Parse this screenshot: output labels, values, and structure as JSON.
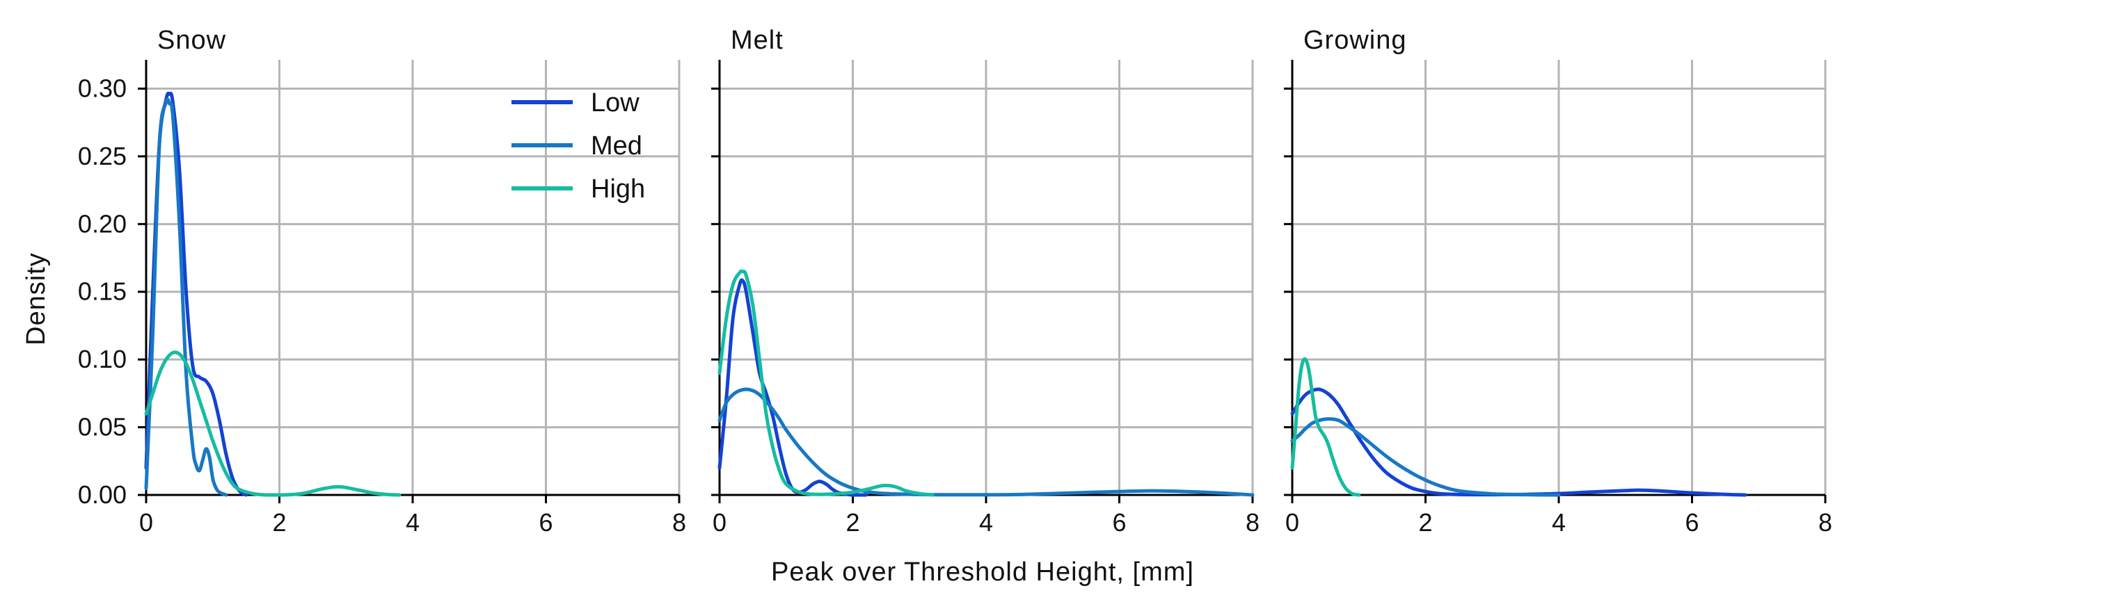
{
  "chart_data": {
    "type": "line",
    "subtype": "kde-density",
    "ylabel": "Density",
    "xlabel": "Peak over Threshold Height, [mm]",
    "xlim": [
      0,
      8
    ],
    "ylim": [
      0,
      0.31
    ],
    "xticks": [
      "0",
      "2",
      "4",
      "6",
      "8"
    ],
    "yticks": [
      "0.00",
      "0.05",
      "0.10",
      "0.15",
      "0.20",
      "0.25",
      "0.30"
    ],
    "grid": true,
    "legend": {
      "location": "top-right of first panel",
      "entries": [
        "Low",
        "Med",
        "High"
      ]
    },
    "colors": {
      "Low": "#1442d2",
      "Med": "#1878c4",
      "High": "#16bca0"
    },
    "panels": [
      {
        "title": "Snow",
        "series": [
          {
            "name": "Low",
            "x": [
              0,
              0.1,
              0.2,
              0.3,
              0.35,
              0.4,
              0.5,
              0.6,
              0.7,
              0.8,
              0.9,
              1.0,
              1.1,
              1.2,
              1.3,
              1.4,
              1.5
            ],
            "y": [
              0.02,
              0.15,
              0.26,
              0.292,
              0.296,
              0.29,
              0.24,
              0.15,
              0.095,
              0.087,
              0.084,
              0.075,
              0.055,
              0.03,
              0.012,
              0.003,
              0.0
            ]
          },
          {
            "name": "Med",
            "x": [
              0,
              0.1,
              0.2,
              0.3,
              0.35,
              0.4,
              0.5,
              0.6,
              0.7,
              0.75,
              0.8,
              0.85,
              0.9,
              0.95,
              1.0,
              1.05,
              1.1,
              1.2
            ],
            "y": [
              0.005,
              0.12,
              0.26,
              0.29,
              0.289,
              0.28,
              0.2,
              0.09,
              0.035,
              0.022,
              0.018,
              0.026,
              0.034,
              0.028,
              0.012,
              0.005,
              0.002,
              0.0
            ]
          },
          {
            "name": "High",
            "x": [
              0,
              0.1,
              0.2,
              0.3,
              0.4,
              0.5,
              0.6,
              0.7,
              0.8,
              0.9,
              1.0,
              1.1,
              1.2,
              1.3,
              1.4,
              1.6,
              1.8,
              2.0,
              2.2,
              2.4,
              2.6,
              2.8,
              2.9,
              3.0,
              3.2,
              3.4,
              3.6,
              3.8
            ],
            "y": [
              0.06,
              0.075,
              0.09,
              0.1,
              0.105,
              0.104,
              0.097,
              0.085,
              0.07,
              0.055,
              0.04,
              0.027,
              0.016,
              0.008,
              0.004,
              0.001,
              0.0,
              0.0,
              0.0003,
              0.0015,
              0.004,
              0.0058,
              0.006,
              0.0055,
              0.0035,
              0.0015,
              0.0004,
              0.0
            ]
          }
        ]
      },
      {
        "title": "Melt",
        "series": [
          {
            "name": "Low",
            "x": [
              0,
              0.1,
              0.2,
              0.3,
              0.35,
              0.4,
              0.5,
              0.6,
              0.7,
              0.8,
              0.9,
              1.0,
              1.1,
              1.2,
              1.3,
              1.4,
              1.5,
              1.6,
              1.7,
              1.8,
              2.0,
              2.2
            ],
            "y": [
              0.02,
              0.07,
              0.13,
              0.155,
              0.158,
              0.15,
              0.12,
              0.09,
              0.075,
              0.058,
              0.035,
              0.015,
              0.004,
              0.002,
              0.004,
              0.008,
              0.01,
              0.008,
              0.004,
              0.0015,
              0.0,
              0.0
            ]
          },
          {
            "name": "Med",
            "x": [
              0,
              0.1,
              0.2,
              0.3,
              0.4,
              0.5,
              0.6,
              0.7,
              0.8,
              0.9,
              1.0,
              1.2,
              1.4,
              1.6,
              1.8,
              2.0,
              2.2,
              2.5,
              3.0,
              3.5,
              4.0,
              4.5,
              5.0,
              5.5,
              6.0,
              6.5,
              7.0,
              7.5,
              8.0
            ],
            "y": [
              0.055,
              0.068,
              0.074,
              0.077,
              0.078,
              0.077,
              0.074,
              0.069,
              0.063,
              0.056,
              0.048,
              0.035,
              0.024,
              0.015,
              0.009,
              0.005,
              0.0025,
              0.001,
              0.0003,
              0.0001,
              0.0001,
              0.0003,
              0.001,
              0.0018,
              0.0025,
              0.003,
              0.0025,
              0.0015,
              0.0
            ]
          },
          {
            "name": "High",
            "x": [
              0,
              0.1,
              0.2,
              0.3,
              0.35,
              0.4,
              0.5,
              0.6,
              0.7,
              0.8,
              0.9,
              1.0,
              1.2,
              1.4,
              1.6,
              1.8,
              2.0,
              2.2,
              2.4,
              2.5,
              2.6,
              2.7,
              2.8,
              3.0,
              3.2
            ],
            "y": [
              0.09,
              0.13,
              0.155,
              0.164,
              0.165,
              0.162,
              0.14,
              0.1,
              0.06,
              0.035,
              0.018,
              0.008,
              0.002,
              0.0005,
              0.0005,
              0.001,
              0.002,
              0.004,
              0.0065,
              0.007,
              0.0065,
              0.005,
              0.003,
              0.001,
              0.0
            ]
          }
        ]
      },
      {
        "title": "Growing",
        "series": [
          {
            "name": "Low",
            "x": [
              0,
              0.1,
              0.2,
              0.3,
              0.4,
              0.5,
              0.6,
              0.7,
              0.8,
              0.9,
              1.0,
              1.2,
              1.4,
              1.6,
              1.8,
              2.0,
              2.2,
              2.5,
              3.0,
              3.5,
              4.0,
              4.5,
              5.0,
              5.2,
              5.5,
              6.0,
              6.5,
              6.8
            ],
            "y": [
              0.06,
              0.068,
              0.074,
              0.077,
              0.078,
              0.076,
              0.072,
              0.066,
              0.058,
              0.05,
              0.042,
              0.028,
              0.017,
              0.01,
              0.005,
              0.0025,
              0.001,
              0.0003,
              0.0002,
              0.0004,
              0.001,
              0.0022,
              0.0032,
              0.0035,
              0.003,
              0.0015,
              0.0004,
              0.0
            ]
          },
          {
            "name": "Med",
            "x": [
              0,
              0.1,
              0.2,
              0.3,
              0.4,
              0.5,
              0.6,
              0.7,
              0.8,
              1.0,
              1.2,
              1.4,
              1.6,
              1.8,
              2.0,
              2.2,
              2.5,
              3.0,
              3.5,
              4.0
            ],
            "y": [
              0.04,
              0.044,
              0.049,
              0.053,
              0.055,
              0.056,
              0.056,
              0.055,
              0.052,
              0.045,
              0.037,
              0.029,
              0.022,
              0.016,
              0.011,
              0.007,
              0.003,
              0.0008,
              0.0002,
              0.0
            ]
          },
          {
            "name": "High",
            "x": [
              0,
              0.05,
              0.1,
              0.15,
              0.2,
              0.25,
              0.3,
              0.35,
              0.4,
              0.45,
              0.5,
              0.55,
              0.6,
              0.7,
              0.8,
              0.9,
              1.0
            ],
            "y": [
              0.02,
              0.05,
              0.08,
              0.097,
              0.1,
              0.092,
              0.075,
              0.058,
              0.05,
              0.046,
              0.042,
              0.036,
              0.028,
              0.014,
              0.005,
              0.001,
              0.0
            ]
          }
        ]
      }
    ]
  }
}
